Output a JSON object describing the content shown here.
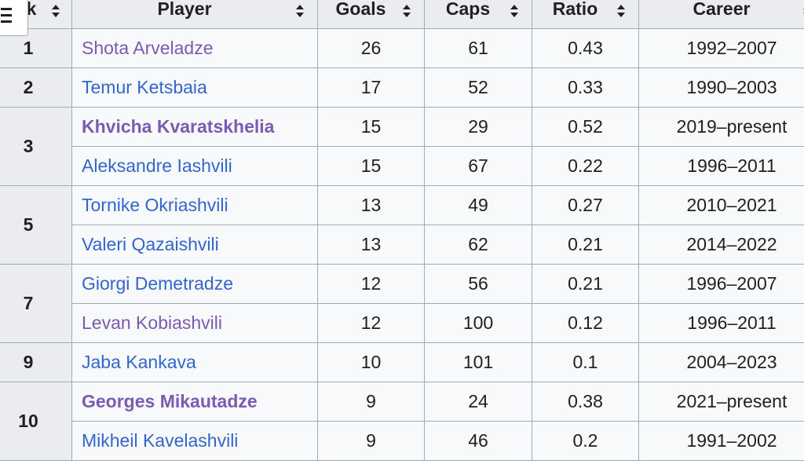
{
  "table": {
    "headers": [
      {
        "key": "rank",
        "label": "Rank"
      },
      {
        "key": "player",
        "label": "Player"
      },
      {
        "key": "goals",
        "label": "Goals"
      },
      {
        "key": "caps",
        "label": "Caps"
      },
      {
        "key": "ratio",
        "label": "Ratio"
      },
      {
        "key": "career",
        "label": "Career"
      }
    ],
    "rank_header_visible": "k",
    "rows": [
      {
        "rank": "1",
        "player": "Shota Arveladze",
        "goals": "26",
        "caps": "61",
        "ratio": "0.43",
        "career": "1992–2007",
        "active": false,
        "visited": true
      },
      {
        "rank": "2",
        "player": "Temur Ketsbaia",
        "goals": "17",
        "caps": "52",
        "ratio": "0.33",
        "career": "1990–2003",
        "active": false,
        "visited": false
      },
      {
        "rank": "3",
        "player": "Khvicha Kvaratskhelia",
        "goals": "15",
        "caps": "29",
        "ratio": "0.52",
        "career": "2019–present",
        "active": true,
        "visited": true
      },
      {
        "rank": "",
        "player": "Aleksandre Iashvili",
        "goals": "15",
        "caps": "67",
        "ratio": "0.22",
        "career": "1996–2011",
        "active": false,
        "visited": false
      },
      {
        "rank": "5",
        "player": "Tornike Okriashvili",
        "goals": "13",
        "caps": "49",
        "ratio": "0.27",
        "career": "2010–2021",
        "active": false,
        "visited": false
      },
      {
        "rank": "",
        "player": "Valeri Qazaishvili",
        "goals": "13",
        "caps": "62",
        "ratio": "0.21",
        "career": "2014–2022",
        "active": false,
        "visited": false
      },
      {
        "rank": "7",
        "player": "Giorgi Demetradze",
        "goals": "12",
        "caps": "56",
        "ratio": "0.21",
        "career": "1996–2007",
        "active": false,
        "visited": false
      },
      {
        "rank": "",
        "player": "Levan Kobiashvili",
        "goals": "12",
        "caps": "100",
        "ratio": "0.12",
        "career": "1996–2011",
        "active": false,
        "visited": true
      },
      {
        "rank": "9",
        "player": "Jaba Kankava",
        "goals": "10",
        "caps": "101",
        "ratio": "0.1",
        "career": "2004–2023",
        "active": false,
        "visited": false
      },
      {
        "rank": "10",
        "player": "Georges Mikautadze",
        "goals": "9",
        "caps": "24",
        "ratio": "0.38",
        "career": "2021–present",
        "active": true,
        "visited": true
      },
      {
        "rank": "",
        "player": "Mikheil Kavelashvili",
        "goals": "9",
        "caps": "46",
        "ratio": "0.2",
        "career": "1991–2002",
        "active": false,
        "visited": false
      }
    ],
    "rank_spans": [
      1,
      1,
      2,
      0,
      2,
      0,
      2,
      0,
      1,
      2,
      0
    ]
  },
  "icons": {
    "menu": "hamburger-menu-icon",
    "sort": "sort-arrows-icon"
  },
  "colors": {
    "header_bg": "#eaecf0",
    "cell_bg": "#f8f9fa",
    "border": "#a2a9b1",
    "link": "#3366cc",
    "link_visited": "#795cb2",
    "text": "#202122"
  }
}
